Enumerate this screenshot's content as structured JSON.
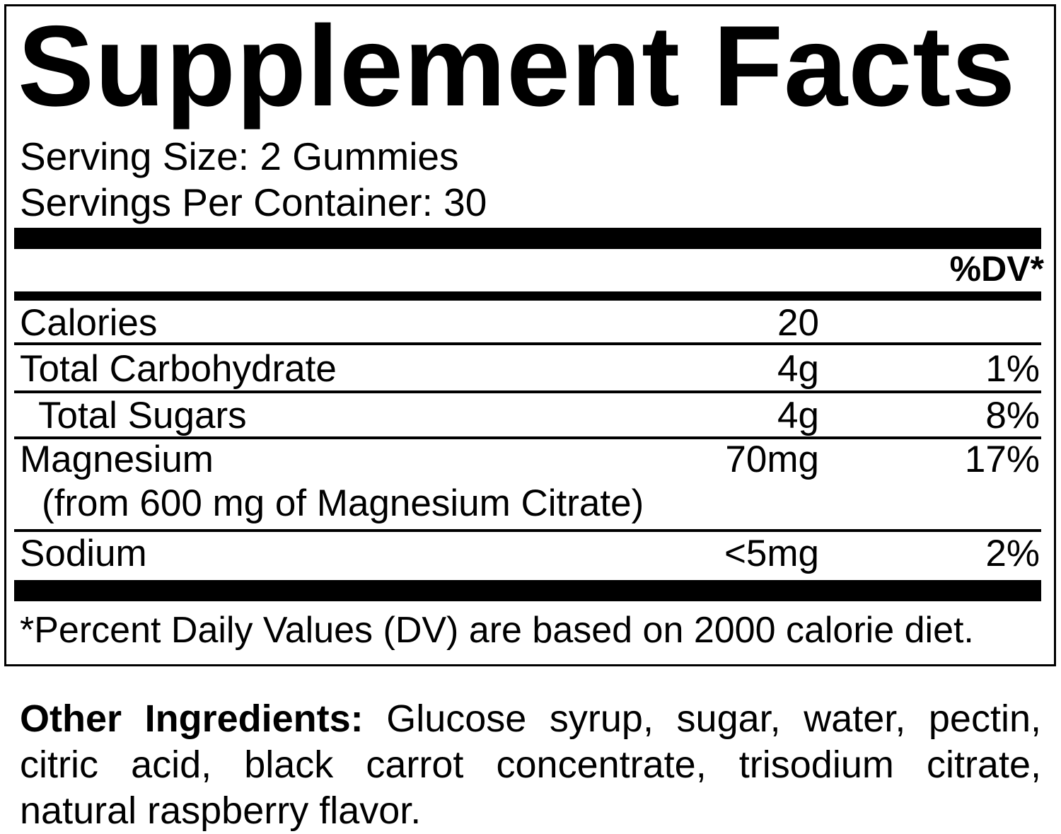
{
  "label": {
    "title": "Supplement Facts",
    "serving_size": "Serving Size: 2 Gummies",
    "servings_per_container": "Servings Per Container: 30",
    "dv_header": "%DV*",
    "rows": [
      {
        "name": "Calories",
        "amount": "20",
        "dv": ""
      },
      {
        "name": "Total Carbohydrate",
        "amount": "4g",
        "dv": "1%"
      },
      {
        "name": "Total Sugars",
        "amount": "4g",
        "dv": "8%"
      },
      {
        "name": "Magnesium",
        "amount": "70mg",
        "dv": "17%",
        "note": "(from 600 mg of Magnesium Citrate)"
      },
      {
        "name": "Sodium",
        "amount": "<5mg",
        "dv": "2%"
      }
    ],
    "footnote": "*Percent Daily Values (DV) are based on 2000 calorie diet.",
    "other_ingredients": {
      "label": "Other Ingredients:",
      "line1_rest": " Glucose syrup, sugar, water, pectin,",
      "line2": "citric acid, black carrot concentrate, trisodium citrate,",
      "line3": "natural raspberry flavor."
    },
    "colors": {
      "text": "#000000",
      "background": "#ffffff"
    }
  }
}
